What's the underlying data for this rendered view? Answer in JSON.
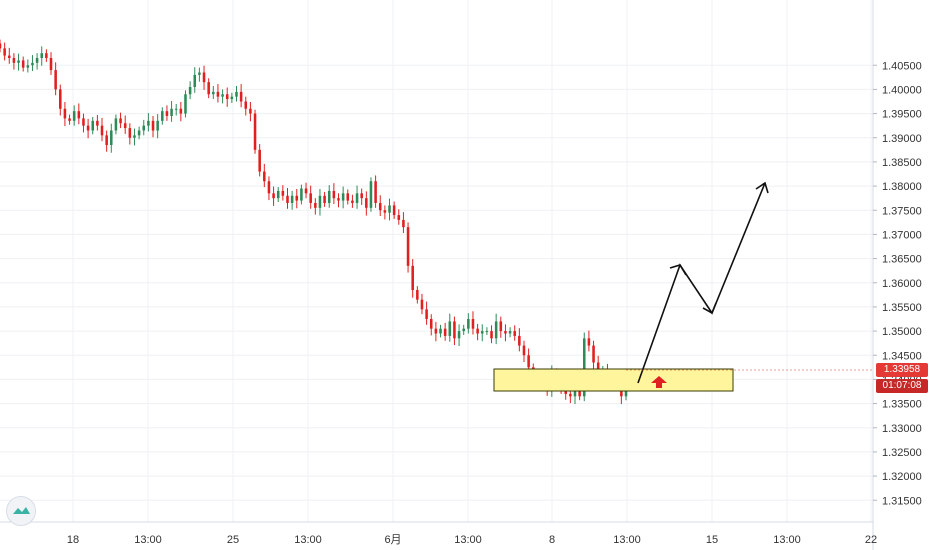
{
  "chart_data": {
    "type": "candlestick",
    "title": "",
    "x_tick_labels": [
      "18",
      "13:00",
      "25",
      "13:00",
      "6月",
      "13:00",
      "8",
      "13:00",
      "15",
      "13:00",
      "22"
    ],
    "y_tick_values": [
      1.405,
      1.4,
      1.395,
      1.39,
      1.385,
      1.38,
      1.375,
      1.37,
      1.365,
      1.36,
      1.355,
      1.35,
      1.345,
      1.34,
      1.335,
      1.33,
      1.325,
      1.32,
      1.315
    ],
    "y_tick_labels": [
      "1.40500",
      "1.40000",
      "1.39500",
      "1.39000",
      "1.38500",
      "1.38000",
      "1.37500",
      "1.37000",
      "1.36500",
      "1.36000",
      "1.35500",
      "1.35000",
      "1.34500",
      "1.34000",
      "1.33500",
      "1.33000",
      "1.32500",
      "1.32000",
      "1.31500"
    ],
    "ylim": [
      1.3105,
      1.4185
    ],
    "current_price": "1.33958",
    "countdown": "01:07:08",
    "closes": [
      1.4085,
      1.407,
      1.4065,
      1.4055,
      1.406,
      1.4045,
      1.405,
      1.4055,
      1.4065,
      1.4075,
      1.4065,
      1.404,
      1.4,
      1.396,
      1.394,
      1.3935,
      1.3955,
      1.394,
      1.3925,
      1.3915,
      1.3935,
      1.3925,
      1.3905,
      1.3885,
      1.3915,
      1.394,
      1.393,
      1.392,
      1.39,
      1.3905,
      1.3915,
      1.3925,
      1.3935,
      1.3915,
      1.3935,
      1.3955,
      1.3945,
      1.396,
      1.396,
      1.395,
      1.399,
      1.4005,
      1.403,
      1.4035,
      1.4015,
      1.399,
      1.3995,
      1.3985,
      1.399,
      1.398,
      1.3985,
      1.3995,
      1.3975,
      1.396,
      1.395,
      1.3875,
      1.383,
      1.381,
      1.3785,
      1.3775,
      1.379,
      1.378,
      1.3765,
      1.378,
      1.377,
      1.3795,
      1.3785,
      1.3765,
      1.3755,
      1.378,
      1.3765,
      1.379,
      1.3775,
      1.377,
      1.3785,
      1.377,
      1.3765,
      1.3785,
      1.3775,
      1.3755,
      1.381,
      1.3765,
      1.375,
      1.3745,
      1.376,
      1.374,
      1.373,
      1.3715,
      1.3635,
      1.3585,
      1.3565,
      1.3545,
      1.3525,
      1.3505,
      1.3495,
      1.3505,
      1.349,
      1.352,
      1.3485,
      1.35,
      1.3505,
      1.3525,
      1.3505,
      1.3495,
      1.35,
      1.35,
      1.3485,
      1.352,
      1.35,
      1.3495,
      1.35,
      1.349,
      1.347,
      1.345,
      1.3425,
      1.341,
      1.3395,
      1.3405,
      1.338,
      1.3415,
      1.3395,
      1.338,
      1.337,
      1.3365,
      1.3375,
      1.3365,
      1.3485,
      1.347,
      1.3435,
      1.3415,
      1.342,
      1.34,
      1.3405,
      1.3395,
      1.3365,
      1.33958
    ],
    "annotations": [
      "support-zone-rectangle",
      "up-arrow",
      "projected-price-path"
    ]
  },
  "colors": {
    "up": "#26a69a",
    "down": "#ef5350",
    "candle_up": "#2e8b57",
    "candle_down": "#e02020",
    "zone_fill": "#fff59d",
    "zone_border": "#3a3a00",
    "grid": "#eef0f3",
    "axis_text": "#333333",
    "price_label_bg": "#e53935"
  },
  "icons": {
    "logo": "tradingview-logo-icon"
  }
}
